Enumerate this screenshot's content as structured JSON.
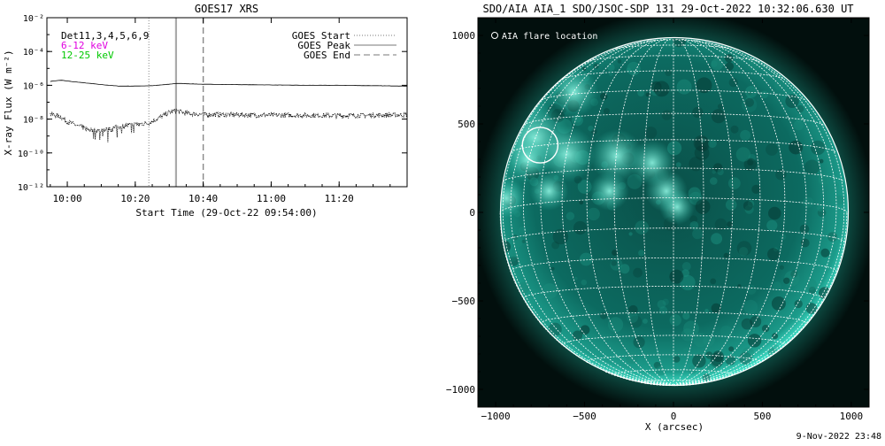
{
  "footer": {
    "timestamp": "9-Nov-2022 23:48"
  },
  "chart_data": [
    {
      "type": "line",
      "title": "GOES17 XRS",
      "xlabel": "Start Time (29-Oct-22 09:54:00)",
      "ylabel": "X-ray Flux (W m⁻²)",
      "y_scale": "log",
      "ylim": [
        1e-12,
        0.01
      ],
      "xlim": [
        "09:54",
        "11:40"
      ],
      "x_ticks": [
        "10:00",
        "10:20",
        "10:40",
        "11:00",
        "11:20"
      ],
      "y_ticks": [
        "10⁻²",
        "10⁻⁴",
        "10⁻⁶",
        "10⁻⁸",
        "10⁻¹⁰",
        "10⁻¹²"
      ],
      "y_tick_exponents": [
        -2,
        -4,
        -6,
        -8,
        -10,
        -12
      ],
      "legend_left": [
        {
          "label": "Det11,3,4,5,6,9",
          "color": "#000000"
        },
        {
          "label": "6-12 keV",
          "color": "#e000e0"
        },
        {
          "label": "12-25 keV",
          "color": "#00c800"
        }
      ],
      "legend_right": [
        {
          "label": "GOES Start",
          "style": "dotted"
        },
        {
          "label": "GOES Peak",
          "style": "solid"
        },
        {
          "label": "GOES End",
          "style": "dashed"
        }
      ],
      "event_times": {
        "start": "10:24",
        "peak": "10:32",
        "end": "10:40"
      },
      "series": [
        {
          "id": "long",
          "style": "solid",
          "x": [
            "09:55",
            "09:58",
            "10:00",
            "10:05",
            "10:10",
            "10:15",
            "10:20",
            "10:25",
            "10:30",
            "10:32",
            "10:35",
            "10:40",
            "10:50",
            "11:00",
            "11:10",
            "11:20",
            "11:30",
            "11:40"
          ],
          "y": [
            1.7e-06,
            2e-06,
            1.8e-06,
            1.4e-06,
            1.1e-06,
            9e-07,
            9e-07,
            9.5e-07,
            1.15e-06,
            1.3e-06,
            1.25e-06,
            1.15e-06,
            1.1e-06,
            1.05e-06,
            1e-06,
            1e-06,
            9.5e-07,
            9e-07
          ]
        },
        {
          "id": "short",
          "style": "noisy",
          "x": [
            "09:55",
            "09:58",
            "10:00",
            "10:03",
            "10:06",
            "10:09",
            "10:12",
            "10:15",
            "10:18",
            "10:21",
            "10:24",
            "10:27",
            "10:30",
            "10:32",
            "10:35",
            "10:40",
            "10:50",
            "11:00",
            "11:10",
            "11:20",
            "11:30",
            "11:40"
          ],
          "y": [
            2e-08,
            1.4e-08,
            7e-09,
            4e-09,
            2.5e-09,
            2e-09,
            2.5e-09,
            3.5e-09,
            4.5e-09,
            5e-09,
            6e-09,
            1.2e-08,
            2.5e-08,
            3.2e-08,
            2.2e-08,
            1.9e-08,
            1.8e-08,
            1.7e-08,
            1.7e-08,
            1.6e-08,
            1.7e-08,
            1.8e-08
          ]
        }
      ]
    },
    {
      "type": "image",
      "title": "SDO/AIA AIA_1 SDO/JSOC-SDP 131 29-Oct-2022 10:32:06.630 UT",
      "xlabel": "X (arcsec)",
      "ylabel": "",
      "xlim": [
        -1100,
        1100
      ],
      "ylim": [
        -1100,
        1100
      ],
      "x_ticks": [
        -1000,
        -500,
        0,
        500,
        1000
      ],
      "x_tick_labels": [
        "−1000",
        "−500",
        "0",
        "500",
        "1000"
      ],
      "y_ticks": [
        1000,
        500,
        0,
        -500,
        -1000
      ],
      "y_tick_labels": [
        "1000",
        "500",
        "0",
        "−500",
        "−1000"
      ],
      "legend": "AIA flare location",
      "solar_radius_arcsec": 975,
      "flare_location": {
        "x": -750,
        "y": 380,
        "radius": 100
      },
      "grid_spacing_deg": 10,
      "colors": {
        "background": "#020f0d",
        "disk": "#0c6a60",
        "limb": "#3fe0c8",
        "grid": "#ffffff"
      }
    }
  ]
}
